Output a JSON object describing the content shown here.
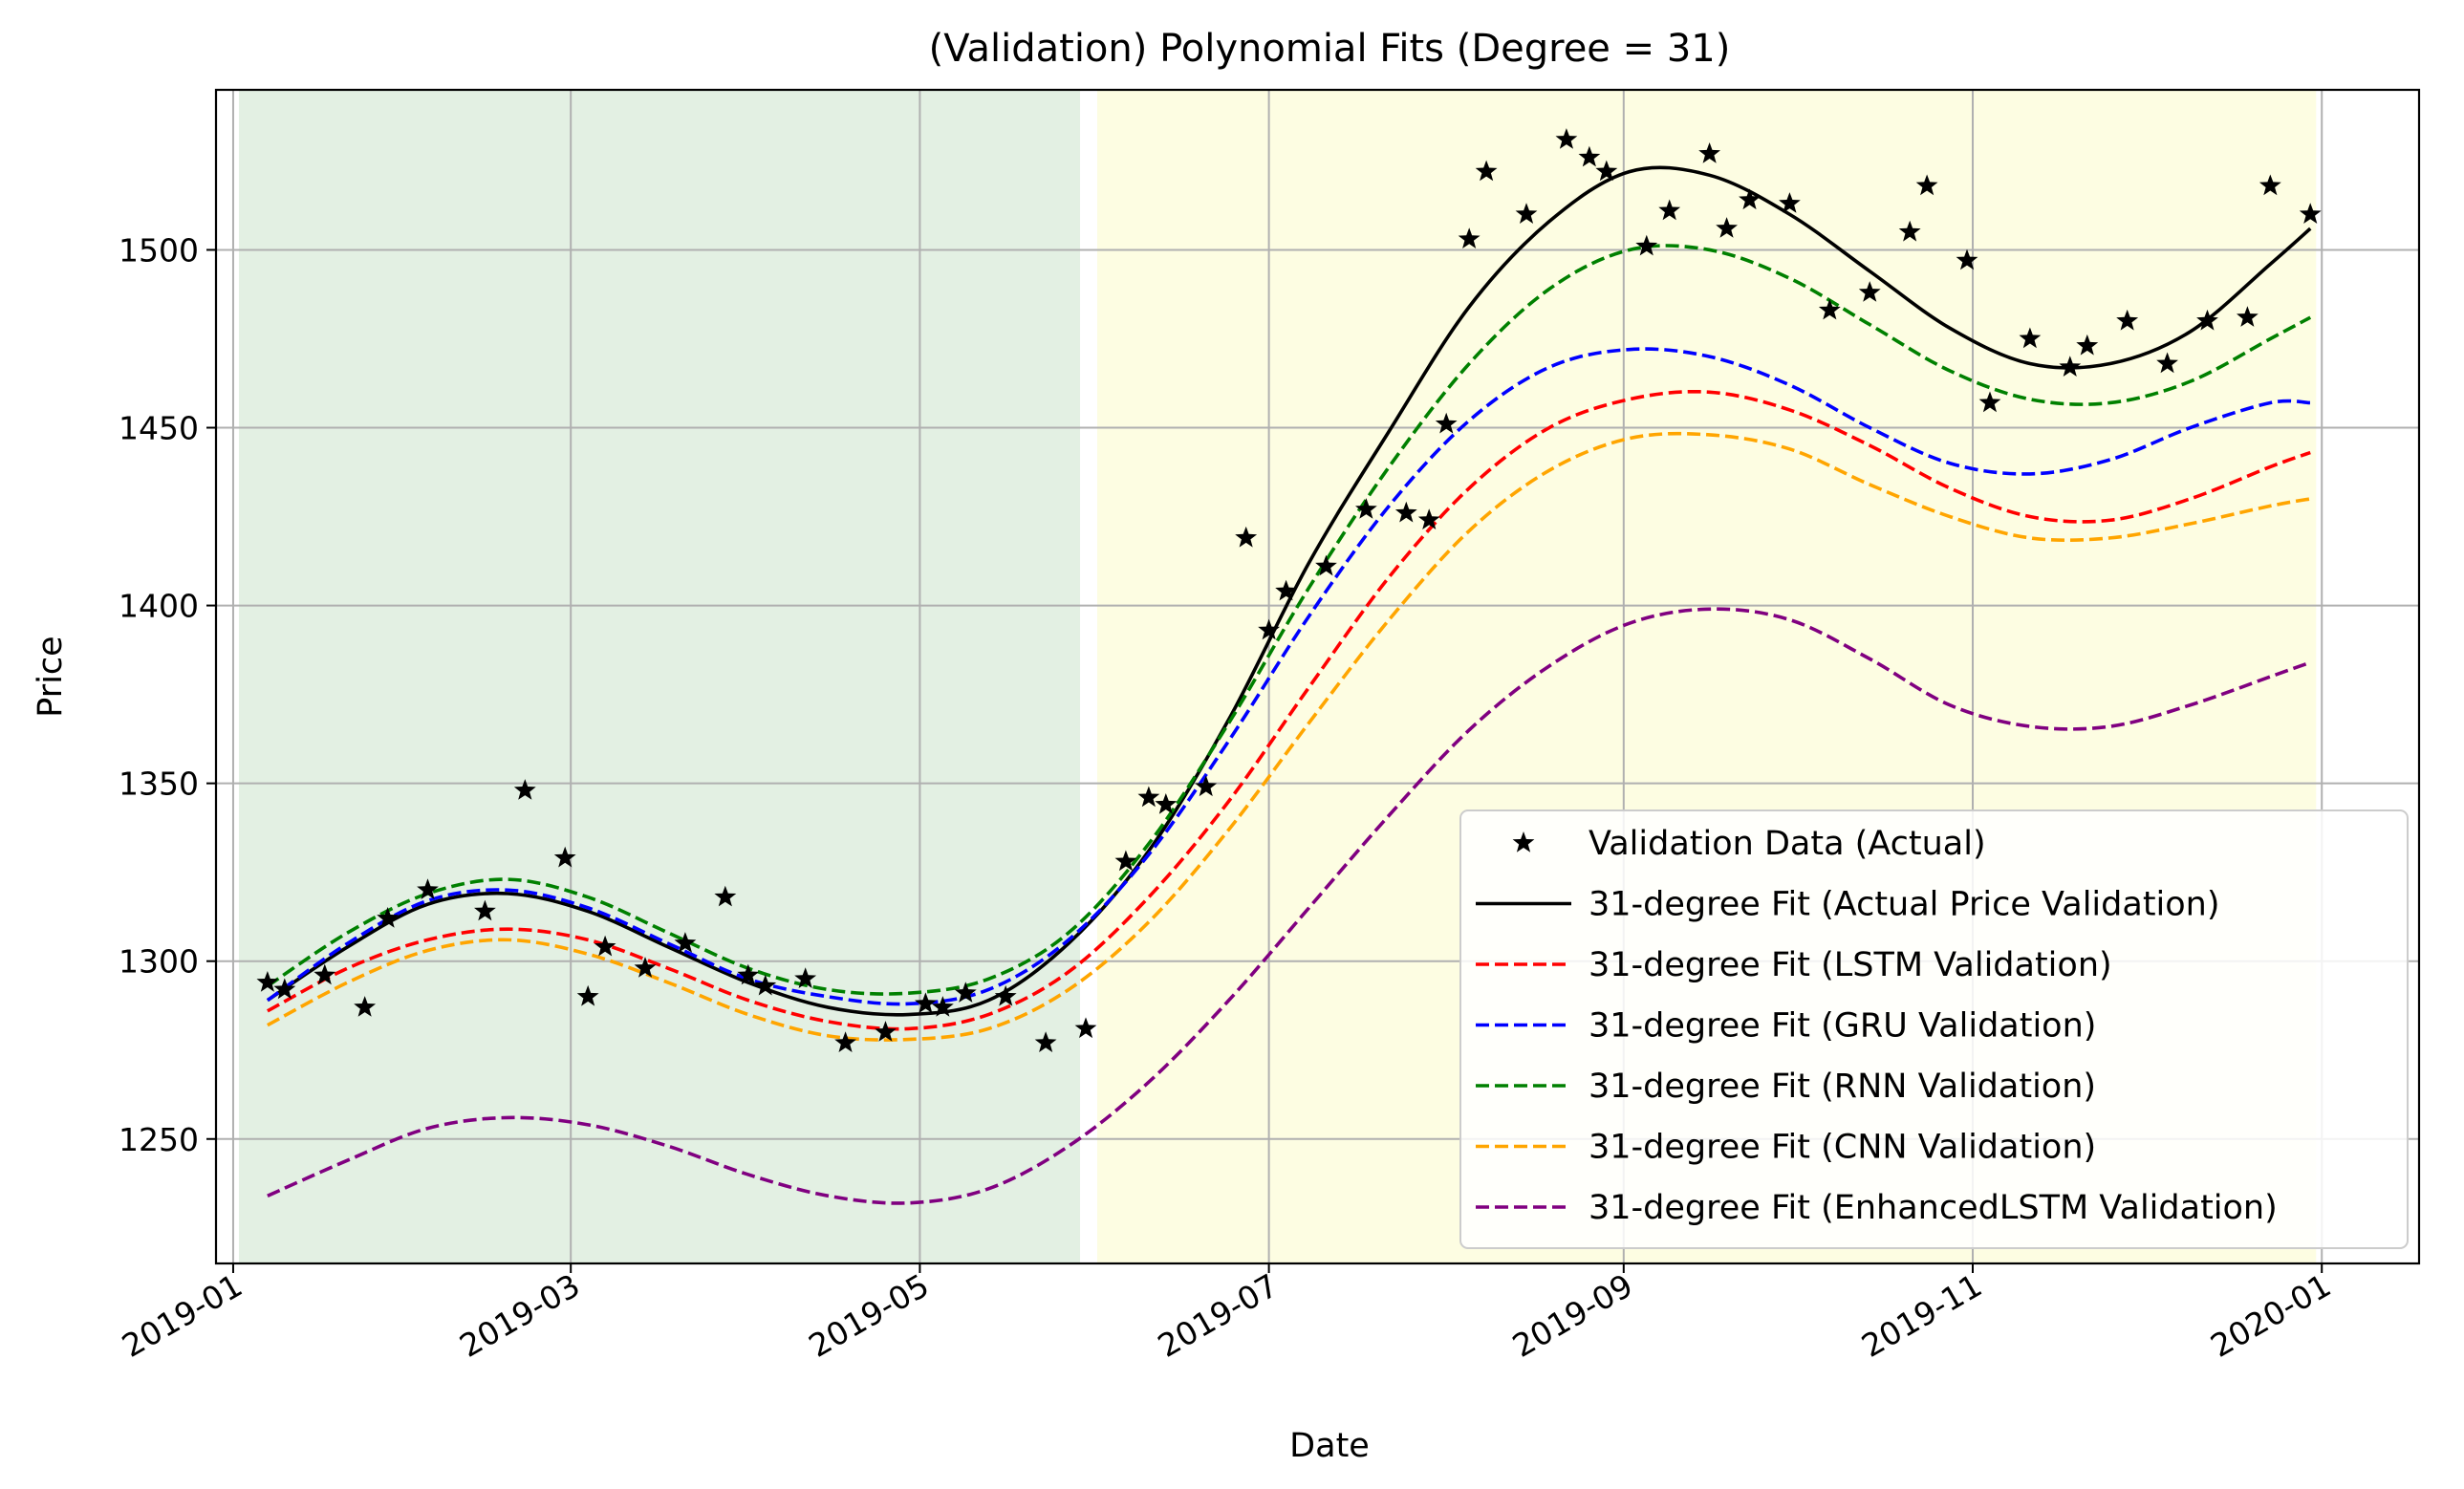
{
  "chart_data": {
    "type": "line",
    "title": "(Validation) Polynomial Fits (Degree = 31)",
    "xlabel": "Date",
    "ylabel": "Price",
    "xlim": [
      "2018-12-29",
      "2020-01-18"
    ],
    "ylim": [
      1215,
      1545
    ],
    "x_ticks": [
      "2019-01-01",
      "2019-03-01",
      "2019-05-01",
      "2019-07-01",
      "2019-09-01",
      "2019-11-01",
      "2020-01-01"
    ],
    "x_tick_labels": [
      "2019-01",
      "2019-03",
      "2019-05",
      "2019-07",
      "2019-09",
      "2019-11",
      "2020-01"
    ],
    "y_ticks": [
      1250,
      1300,
      1350,
      1400,
      1450,
      1500
    ],
    "grid": true,
    "legend_position": "lower-right",
    "shaded_regions": [
      {
        "start": "2019-01-02",
        "end": "2019-05-29",
        "color": "#e3f0e3"
      },
      {
        "start": "2019-06-01",
        "end": "2019-12-31",
        "color": "#fdfde2"
      }
    ],
    "scatter": {
      "name": "Validation Data (Actual)",
      "color": "#000000",
      "marker": "star",
      "x": [
        "2019-01-07",
        "2019-01-10",
        "2019-01-17",
        "2019-01-24",
        "2019-01-28",
        "2019-02-04",
        "2019-02-14",
        "2019-02-21",
        "2019-02-28",
        "2019-03-04",
        "2019-03-07",
        "2019-03-14",
        "2019-03-21",
        "2019-03-28",
        "2019-04-01",
        "2019-04-04",
        "2019-04-11",
        "2019-04-18",
        "2019-04-25",
        "2019-05-02",
        "2019-05-05",
        "2019-05-09",
        "2019-05-16",
        "2019-05-23",
        "2019-05-30",
        "2019-06-06",
        "2019-06-10",
        "2019-06-13",
        "2019-06-20",
        "2019-06-27",
        "2019-07-01",
        "2019-07-04",
        "2019-07-11",
        "2019-07-18",
        "2019-07-25",
        "2019-07-29",
        "2019-08-01",
        "2019-08-05",
        "2019-08-08",
        "2019-08-15",
        "2019-08-22",
        "2019-08-26",
        "2019-08-29",
        "2019-09-05",
        "2019-09-09",
        "2019-09-16",
        "2019-09-19",
        "2019-09-23",
        "2019-09-30",
        "2019-10-07",
        "2019-10-14",
        "2019-10-21",
        "2019-10-24",
        "2019-10-31",
        "2019-11-04",
        "2019-11-11",
        "2019-11-18",
        "2019-11-21",
        "2019-11-28",
        "2019-12-05",
        "2019-12-12",
        "2019-12-19",
        "2019-12-23",
        "2019-12-30"
      ],
      "y": [
        1294,
        1292,
        1296,
        1287,
        1312,
        1320,
        1314,
        1348,
        1329,
        1290,
        1304,
        1298,
        1305,
        1318,
        1296,
        1293,
        1295,
        1277,
        1280,
        1288,
        1287,
        1291,
        1290,
        1277,
        1281,
        1328,
        1346,
        1344,
        1349,
        1419,
        1393,
        1404,
        1411,
        1427,
        1426,
        1424,
        1451,
        1503,
        1522,
        1510,
        1531,
        1526,
        1522,
        1501,
        1511,
        1527,
        1506,
        1514,
        1513,
        1483,
        1488,
        1505,
        1518,
        1497,
        1457,
        1475,
        1467,
        1473,
        1480,
        1468,
        1480,
        1481,
        1518,
        1510
      ]
    },
    "series": [
      {
        "name": "31-degree Fit (Actual Price Validation)",
        "color": "#000000",
        "dash": "solid",
        "x": [
          "2019-01-07",
          "2019-01-21",
          "2019-02-04",
          "2019-02-18",
          "2019-03-04",
          "2019-03-18",
          "2019-04-01",
          "2019-04-15",
          "2019-04-29",
          "2019-05-13",
          "2019-05-27",
          "2019-06-10",
          "2019-06-24",
          "2019-07-08",
          "2019-07-22",
          "2019-08-05",
          "2019-08-19",
          "2019-09-02",
          "2019-09-16",
          "2019-09-30",
          "2019-10-14",
          "2019-10-28",
          "2019-11-11",
          "2019-11-25",
          "2019-12-09",
          "2019-12-23",
          "2019-12-30"
        ],
        "y": [
          1289,
          1304,
          1316,
          1319,
          1314,
          1304,
          1294,
          1287,
          1285,
          1289,
          1305,
          1331,
          1368,
          1412,
          1449,
          1484,
          1508,
          1522,
          1521,
          1510,
          1494,
          1478,
          1468,
          1468,
          1477,
          1496,
          1506
        ]
      },
      {
        "name": "31-degree Fit (LSTM Validation)",
        "color": "#ff0000",
        "dash": "dashed",
        "x": [
          "2019-01-07",
          "2019-01-21",
          "2019-02-04",
          "2019-02-18",
          "2019-03-04",
          "2019-03-18",
          "2019-04-01",
          "2019-04-15",
          "2019-04-29",
          "2019-05-13",
          "2019-05-27",
          "2019-06-10",
          "2019-06-24",
          "2019-07-08",
          "2019-07-22",
          "2019-08-05",
          "2019-08-19",
          "2019-09-02",
          "2019-09-16",
          "2019-09-30",
          "2019-10-14",
          "2019-10-28",
          "2019-11-11",
          "2019-11-25",
          "2019-12-09",
          "2019-12-23",
          "2019-12-30"
        ],
        "y": [
          1286,
          1298,
          1306,
          1309,
          1306,
          1298,
          1289,
          1283,
          1281,
          1285,
          1297,
          1318,
          1345,
          1377,
          1408,
          1433,
          1450,
          1458,
          1460,
          1455,
          1445,
          1433,
          1425,
          1424,
          1430,
          1439,
          1443
        ]
      },
      {
        "name": "31-degree Fit (GRU Validation)",
        "color": "#0000ff",
        "dash": "dashed",
        "x": [
          "2019-01-07",
          "2019-01-21",
          "2019-02-04",
          "2019-02-18",
          "2019-03-04",
          "2019-03-18",
          "2019-04-01",
          "2019-04-15",
          "2019-04-29",
          "2019-05-13",
          "2019-05-27",
          "2019-06-10",
          "2019-06-24",
          "2019-07-08",
          "2019-07-22",
          "2019-08-05",
          "2019-08-19",
          "2019-09-02",
          "2019-09-16",
          "2019-09-30",
          "2019-10-14",
          "2019-10-28",
          "2019-11-11",
          "2019-11-25",
          "2019-12-09",
          "2019-12-23",
          "2019-12-30"
        ],
        "y": [
          1289,
          1305,
          1317,
          1320,
          1315,
          1305,
          1295,
          1290,
          1288,
          1292,
          1306,
          1330,
          1362,
          1397,
          1428,
          1452,
          1467,
          1472,
          1470,
          1462,
          1450,
          1440,
          1437,
          1441,
          1450,
          1457,
          1457
        ]
      },
      {
        "name": "31-degree Fit (RNN Validation)",
        "color": "#008000",
        "dash": "dashed",
        "x": [
          "2019-01-07",
          "2019-01-21",
          "2019-02-04",
          "2019-02-18",
          "2019-03-04",
          "2019-03-18",
          "2019-04-01",
          "2019-04-15",
          "2019-04-29",
          "2019-05-13",
          "2019-05-27",
          "2019-06-10",
          "2019-06-24",
          "2019-07-08",
          "2019-07-22",
          "2019-08-05",
          "2019-08-19",
          "2019-09-02",
          "2019-09-16",
          "2019-09-30",
          "2019-10-14",
          "2019-10-28",
          "2019-11-11",
          "2019-11-25",
          "2019-12-09",
          "2019-12-23",
          "2019-12-30"
        ],
        "y": [
          1293,
          1308,
          1319,
          1323,
          1318,
          1308,
          1298,
          1292,
          1291,
          1295,
          1308,
          1333,
          1367,
          1405,
          1439,
          1468,
          1489,
          1500,
          1500,
          1492,
          1479,
          1466,
          1458,
          1457,
          1463,
          1475,
          1481
        ]
      },
      {
        "name": "31-degree Fit (CNN Validation)",
        "color": "#ffa500",
        "dash": "dashed",
        "x": [
          "2019-01-07",
          "2019-01-21",
          "2019-02-04",
          "2019-02-18",
          "2019-03-04",
          "2019-03-18",
          "2019-04-01",
          "2019-04-15",
          "2019-04-29",
          "2019-05-13",
          "2019-05-27",
          "2019-06-10",
          "2019-06-24",
          "2019-07-08",
          "2019-07-22",
          "2019-08-05",
          "2019-08-19",
          "2019-09-02",
          "2019-09-16",
          "2019-09-30",
          "2019-10-14",
          "2019-10-28",
          "2019-11-11",
          "2019-11-25",
          "2019-12-09",
          "2019-12-23",
          "2019-12-30"
        ],
        "y": [
          1282,
          1294,
          1303,
          1306,
          1302,
          1294,
          1285,
          1279,
          1278,
          1281,
          1292,
          1311,
          1337,
          1367,
          1396,
          1421,
          1438,
          1447,
          1448,
          1444,
          1434,
          1425,
          1419,
          1419,
          1423,
          1428,
          1430
        ]
      },
      {
        "name": "31-degree Fit (EnhancedLSTM Validation)",
        "color": "#800080",
        "dash": "dashed",
        "x": [
          "2019-01-07",
          "2019-01-21",
          "2019-02-04",
          "2019-02-18",
          "2019-03-04",
          "2019-03-18",
          "2019-04-01",
          "2019-04-15",
          "2019-04-29",
          "2019-05-13",
          "2019-05-27",
          "2019-06-10",
          "2019-06-24",
          "2019-07-08",
          "2019-07-22",
          "2019-08-05",
          "2019-08-19",
          "2019-09-02",
          "2019-09-16",
          "2019-09-30",
          "2019-10-14",
          "2019-10-28",
          "2019-11-11",
          "2019-11-25",
          "2019-12-09",
          "2019-12-23",
          "2019-12-30"
        ],
        "y": [
          1234,
          1244,
          1253,
          1256,
          1254,
          1248,
          1240,
          1234,
          1232,
          1236,
          1248,
          1266,
          1289,
          1315,
          1341,
          1365,
          1383,
          1395,
          1399,
          1396,
          1385,
          1372,
          1366,
          1366,
          1372,
          1380,
          1384
        ]
      }
    ],
    "legend_entries": [
      "Validation Data (Actual)",
      "31-degree Fit (Actual Price Validation)",
      "31-degree Fit (LSTM Validation)",
      "31-degree Fit (GRU Validation)",
      "31-degree Fit (RNN Validation)",
      "31-degree Fit (CNN Validation)",
      "31-degree Fit (EnhancedLSTM Validation)"
    ]
  }
}
